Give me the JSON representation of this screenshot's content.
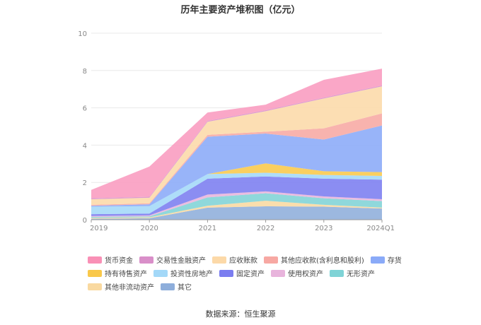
{
  "chart_data": {
    "type": "area",
    "stacked": true,
    "title": "历年主要资产堆积图（亿元）",
    "categories": [
      "2019",
      "2020",
      "2021",
      "2022",
      "2023",
      "2024Q1"
    ],
    "ylim": [
      0,
      10
    ],
    "yticks": [
      0,
      2,
      4,
      6,
      8,
      10
    ],
    "grid": true,
    "legend_position": "bottom",
    "series": [
      {
        "name": "其它",
        "color": "#8eaedb",
        "values": [
          0.05,
          0.08,
          0.65,
          0.72,
          0.7,
          0.6
        ]
      },
      {
        "name": "其他非流动资产",
        "color": "#f9d9a0",
        "values": [
          0.05,
          0.05,
          0.1,
          0.3,
          0.1,
          0.05
        ]
      },
      {
        "name": "无形资产",
        "color": "#7fd3d6",
        "values": [
          0.05,
          0.05,
          0.45,
          0.4,
          0.35,
          0.35
        ]
      },
      {
        "name": "使用权资产",
        "color": "#e8b4dc",
        "values": [
          0.05,
          0.05,
          0.15,
          0.1,
          0.1,
          0.1
        ]
      },
      {
        "name": "固定资产",
        "color": "#7b7df0",
        "values": [
          0.1,
          0.1,
          0.85,
          0.8,
          0.95,
          1.05
        ]
      },
      {
        "name": "投资性房地产",
        "color": "#a3d8f8",
        "values": [
          0.4,
          0.4,
          0.25,
          0.2,
          0.2,
          0.2
        ]
      },
      {
        "name": "持有待售资产",
        "color": "#f9c84a",
        "values": [
          0,
          0,
          0,
          0.5,
          0.2,
          0.2
        ]
      },
      {
        "name": "存货",
        "color": "#8aaaf8",
        "values": [
          0.05,
          0.1,
          2.0,
          1.6,
          1.7,
          2.5
        ]
      },
      {
        "name": "其他应收款(含利息和股利)",
        "color": "#f7a8a3",
        "values": [
          0.05,
          0.05,
          0.1,
          0.1,
          0.6,
          0.65
        ]
      },
      {
        "name": "应收账款",
        "color": "#fcd9a8",
        "values": [
          0.3,
          0.3,
          0.7,
          1.1,
          1.6,
          1.45
        ]
      },
      {
        "name": "交易性金融资产",
        "color": "#d98fc9",
        "values": [
          0.05,
          0.05,
          0.05,
          0.05,
          0.05,
          0.05
        ]
      },
      {
        "name": "货币资金",
        "color": "#f99bbf",
        "values": [
          0.45,
          1.62,
          0.45,
          0.3,
          0.95,
          0.9
        ]
      }
    ]
  },
  "legend_items": [
    {
      "label": "货币资金",
      "color": "#f990b6"
    },
    {
      "label": "交易性金融资产",
      "color": "#d98fc9"
    },
    {
      "label": "应收账款",
      "color": "#fcd9a8"
    },
    {
      "label": "其他应收款(含利息和股利)",
      "color": "#f7a8a3"
    },
    {
      "label": "存货",
      "color": "#8aaaf8"
    },
    {
      "label": "持有待售资产",
      "color": "#f9c84a"
    },
    {
      "label": "投资性房地产",
      "color": "#a3d8f8"
    },
    {
      "label": "固定资产",
      "color": "#7b7df0"
    },
    {
      "label": "使用权资产",
      "color": "#e8b4dc"
    },
    {
      "label": "无形资产",
      "color": "#7fd3d6"
    },
    {
      "label": "其他非流动资产",
      "color": "#f9d9a0"
    },
    {
      "label": "其它",
      "color": "#8eaedb"
    }
  ],
  "source": "数据来源：恒生聚源"
}
